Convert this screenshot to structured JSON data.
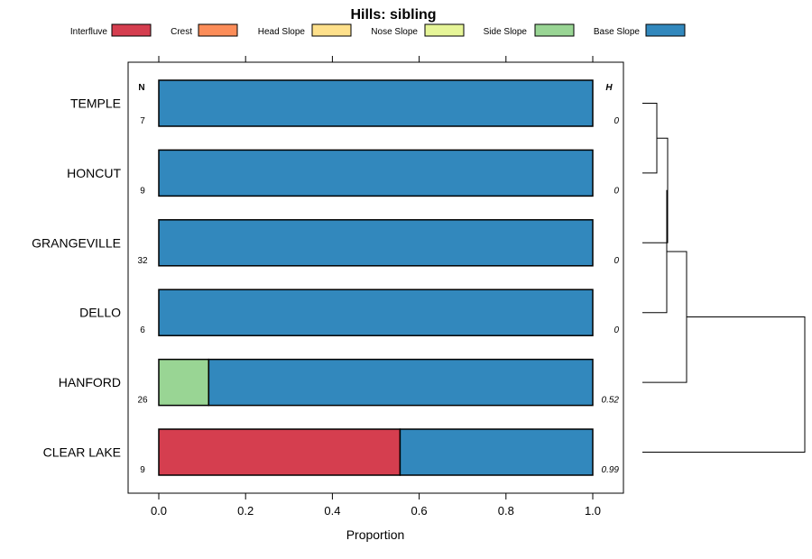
{
  "chart_data": {
    "type": "bar",
    "orientation": "horizontal",
    "stacked": true,
    "title": "Hills: sibling",
    "xlabel": "Proportion",
    "ylabel": "",
    "xlim": [
      0,
      1
    ],
    "xticks": [
      "0.0",
      "0.2",
      "0.4",
      "0.6",
      "0.8",
      "1.0"
    ],
    "n_header": "N",
    "h_header": "H",
    "legend": [
      {
        "name": "Interfluve",
        "color": "#D53E4F"
      },
      {
        "name": "Crest",
        "color": "#FC8D59"
      },
      {
        "name": "Head Slope",
        "color": "#FEE08B"
      },
      {
        "name": "Nose Slope",
        "color": "#E6F598"
      },
      {
        "name": "Side Slope",
        "color": "#99D594"
      },
      {
        "name": "Base Slope",
        "color": "#3288BD"
      }
    ],
    "categories": [
      "TEMPLE",
      "HONCUT",
      "GRANGEVILLE",
      "DELLO",
      "HANFORD",
      "CLEAR LAKE"
    ],
    "rows": [
      {
        "label": "TEMPLE",
        "n": "7",
        "h": "0",
        "values": [
          0,
          0,
          0,
          0,
          0,
          1
        ]
      },
      {
        "label": "HONCUT",
        "n": "9",
        "h": "0",
        "values": [
          0,
          0,
          0,
          0,
          0,
          1
        ]
      },
      {
        "label": "GRANGEVILLE",
        "n": "32",
        "h": "0",
        "values": [
          0,
          0,
          0,
          0,
          0,
          1
        ]
      },
      {
        "label": "DELLO",
        "n": "6",
        "h": "0",
        "values": [
          0,
          0,
          0,
          0,
          0,
          1
        ]
      },
      {
        "label": "HANFORD",
        "n": "26",
        "h": "0.52",
        "values": [
          0,
          0,
          0,
          0,
          0.115,
          0.885
        ]
      },
      {
        "label": "CLEAR LAKE",
        "n": "9",
        "h": "0.99",
        "values": [
          0.556,
          0,
          0,
          0,
          0,
          0.444
        ]
      }
    ]
  }
}
